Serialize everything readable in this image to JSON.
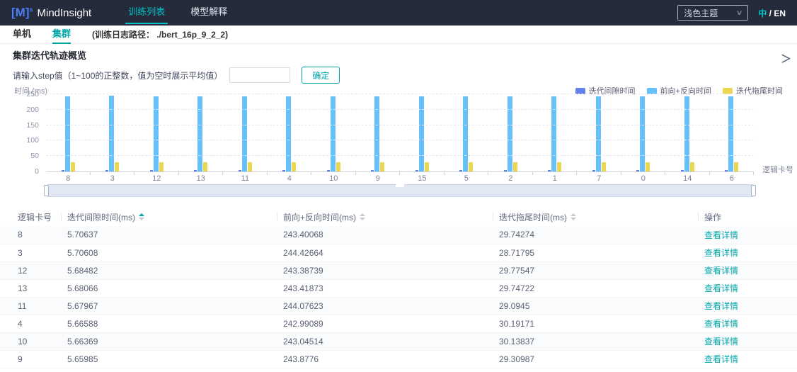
{
  "theme": {
    "accent": "#00a5a7",
    "navbar_accent": "#00c2c9",
    "navbar_bg": "#252b3a"
  },
  "navbar": {
    "logo_bracket": "[M]",
    "logo_sup": "s",
    "brand": "MindInsight",
    "tabs": [
      {
        "label": "训练列表",
        "active": true
      },
      {
        "label": "模型解释",
        "active": false
      }
    ],
    "theme_select_value": "浅色主题",
    "chevron_icon": "∨",
    "lang_zh": "中",
    "lang_rest": "/ EN"
  },
  "subnav": {
    "tabs": [
      {
        "label": "单机",
        "active": false
      },
      {
        "label": "集群",
        "active": true
      }
    ],
    "log_path_note": "(训练日志路径： ./bert_16p_9_2_2)"
  },
  "overview": {
    "title": "集群迭代轨迹概览",
    "step_hint": "请输入step值（1~100的正整数，值为空时展示平均值）",
    "step_input_value": "",
    "confirm_button": "确定",
    "collapse_icon": "＞"
  },
  "chart_data": {
    "type": "bar",
    "title": "",
    "ylabel": "时间  (ms)",
    "xlabel": "逻辑卡号",
    "ylim": [
      0,
      250
    ],
    "yticks": [
      0,
      50,
      100,
      150,
      200,
      250
    ],
    "grid": true,
    "legend_position": "top-right",
    "categories": [
      "8",
      "3",
      "12",
      "13",
      "11",
      "4",
      "10",
      "9",
      "15",
      "5",
      "2",
      "1",
      "7",
      "0",
      "14",
      "6"
    ],
    "series": [
      {
        "name": "迭代间隙时间",
        "color": "#6180e8",
        "values": [
          5.70637,
          5.70608,
          5.68482,
          5.68066,
          5.67967,
          5.66588,
          5.66369,
          5.65985,
          5.6549,
          5.6512,
          5.6488,
          5.6423,
          5.6391,
          5.6355,
          5.6322,
          5.6298
        ]
      },
      {
        "name": "前向+反向时间",
        "color": "#66c0fa",
        "values": [
          243.40068,
          244.42664,
          243.38739,
          243.41873,
          244.07623,
          242.99089,
          243.04514,
          243.8776,
          243.52,
          243.18,
          243.64,
          243.29,
          243.41,
          243.55,
          243.22,
          243.47
        ]
      },
      {
        "name": "迭代拖尾时间",
        "color": "#ecd753",
        "values": [
          29.74274,
          28.71795,
          29.77547,
          29.74722,
          29.0945,
          30.19171,
          30.13837,
          29.30987,
          29.51,
          29.83,
          29.62,
          29.91,
          29.45,
          29.68,
          29.24,
          29.57
        ]
      }
    ]
  },
  "table": {
    "columns": [
      {
        "label": "逻辑卡号",
        "sortable": false
      },
      {
        "label": "迭代间隙时间(ms)",
        "sortable": true,
        "sort": "asc"
      },
      {
        "label": "前向+反向时间(ms)",
        "sortable": true,
        "sort": "none"
      },
      {
        "label": "迭代拖尾时间(ms)",
        "sortable": true,
        "sort": "none"
      },
      {
        "label": "操作",
        "sortable": false
      }
    ],
    "action_label": "查看详情",
    "rows": [
      [
        "8",
        "5.70637",
        "243.40068",
        "29.74274"
      ],
      [
        "3",
        "5.70608",
        "244.42664",
        "28.71795"
      ],
      [
        "12",
        "5.68482",
        "243.38739",
        "29.77547"
      ],
      [
        "13",
        "5.68066",
        "243.41873",
        "29.74722"
      ],
      [
        "11",
        "5.67967",
        "244.07623",
        "29.0945"
      ],
      [
        "4",
        "5.66588",
        "242.99089",
        "30.19171"
      ],
      [
        "10",
        "5.66369",
        "243.04514",
        "30.13837"
      ],
      [
        "9",
        "5.65985",
        "243.8776",
        "29.30987"
      ]
    ]
  }
}
